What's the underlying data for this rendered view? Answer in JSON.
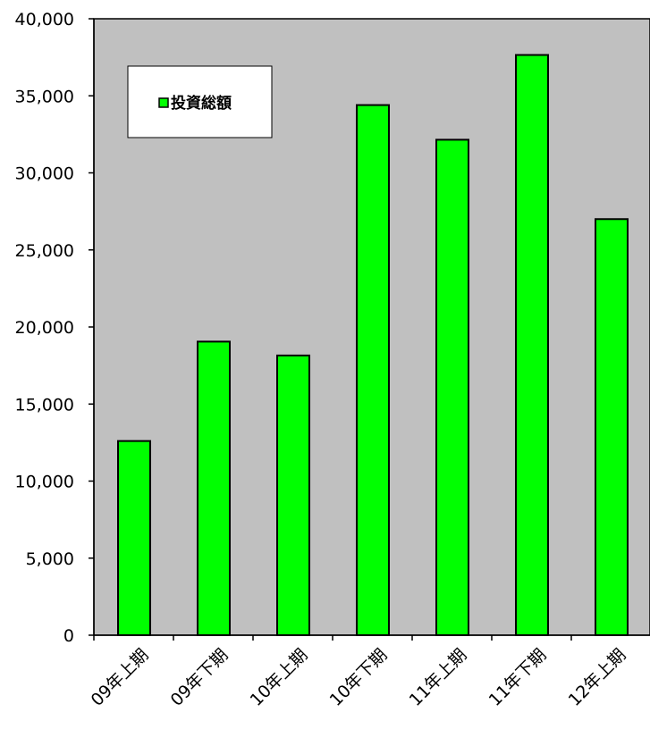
{
  "chart_data": {
    "type": "bar",
    "title": "",
    "xlabel": "",
    "ylabel": "",
    "categories": [
      "09年上期",
      "09年下期",
      "10年上期",
      "10年下期",
      "11年上期",
      "11年下期",
      "12年上期"
    ],
    "series": [
      {
        "name": "投資総額",
        "values": [
          12600,
          19050,
          18150,
          34400,
          32150,
          37650,
          27000
        ],
        "color": "#00ff00"
      }
    ],
    "ylim": [
      0,
      40000
    ],
    "y_ticks": [
      0,
      5000,
      10000,
      15000,
      20000,
      25000,
      30000,
      35000,
      40000
    ],
    "y_tick_labels": [
      "0",
      "5,000",
      "10,000",
      "15,000",
      "20,000",
      "25,000",
      "30,000",
      "35,000",
      "40,000"
    ],
    "grid": false,
    "legend_position": "top-left",
    "plot_background": "#c0c0c0",
    "bar_outline_color": "#000000"
  }
}
